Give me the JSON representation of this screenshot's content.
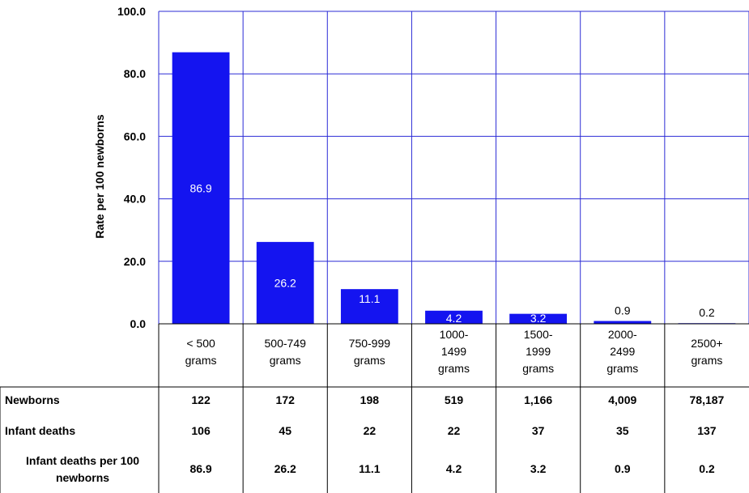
{
  "chart_data": {
    "type": "bar",
    "ylabel": "Rate per 100 newborns",
    "ylim": [
      0,
      100
    ],
    "yticks": [
      "0.0",
      "20.0",
      "40.0",
      "60.0",
      "80.0",
      "100.0"
    ],
    "grid": true,
    "bar_color": "#1414f0",
    "grid_color": "#2b2bd6",
    "categories": [
      [
        "< 500",
        "grams"
      ],
      [
        "500-749",
        "grams"
      ],
      [
        "750-999",
        "grams"
      ],
      [
        "1000-",
        "1499",
        "grams"
      ],
      [
        "1500-",
        "1999",
        "grams"
      ],
      [
        "2000-",
        "2499",
        "grams"
      ],
      [
        "2500+",
        "grams"
      ]
    ],
    "values": [
      86.9,
      26.2,
      11.1,
      4.2,
      3.2,
      0.9,
      0.2
    ],
    "data_labels": [
      "86.9",
      "26.2",
      "11.1",
      "4.2",
      "3.2",
      "0.9",
      "0.2"
    ]
  },
  "table": {
    "rows": [
      {
        "label": [
          "Newborns"
        ],
        "values": [
          "122",
          "172",
          "198",
          "519",
          "1,166",
          "4,009",
          "78,187"
        ]
      },
      {
        "label": [
          "Infant deaths"
        ],
        "values": [
          "106",
          "45",
          "22",
          "22",
          "37",
          "35",
          "137"
        ]
      },
      {
        "label": [
          "Infant deaths  per 100",
          "newborns"
        ],
        "values": [
          "86.9",
          "26.2",
          "11.1",
          "4.2",
          "3.2",
          "0.9",
          "0.2"
        ]
      }
    ]
  }
}
